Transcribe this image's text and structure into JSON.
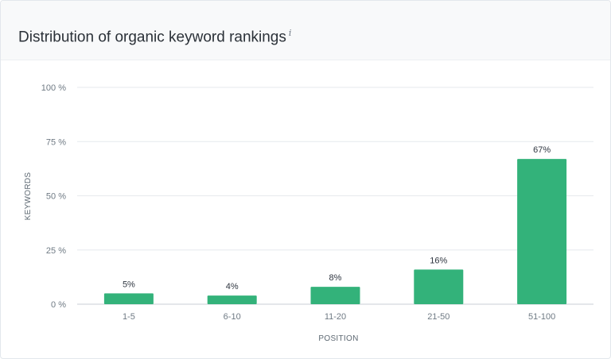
{
  "header": {
    "title": "Distribution of organic keyword rankings",
    "info_glyph": "i",
    "info_icon": "info-icon"
  },
  "colors": {
    "bar": "#33b27a",
    "grid": "#e6e9ed",
    "axis": "#c9ced4"
  },
  "chart_data": {
    "type": "bar",
    "title": "",
    "xlabel": "POSITION",
    "ylabel": "KEYWORDS",
    "categories": [
      "1-5",
      "6-10",
      "11-20",
      "21-50",
      "51-100"
    ],
    "values": [
      5,
      4,
      8,
      16,
      67
    ],
    "data_labels": [
      "5%",
      "4%",
      "8%",
      "16%",
      "67%"
    ],
    "ylim": [
      0,
      100
    ],
    "yticks": [
      0,
      25,
      50,
      75,
      100
    ],
    "ytick_labels": [
      "0 %",
      "25 %",
      "50 %",
      "75 %",
      "100 %"
    ],
    "grid": true,
    "legend": "none"
  }
}
